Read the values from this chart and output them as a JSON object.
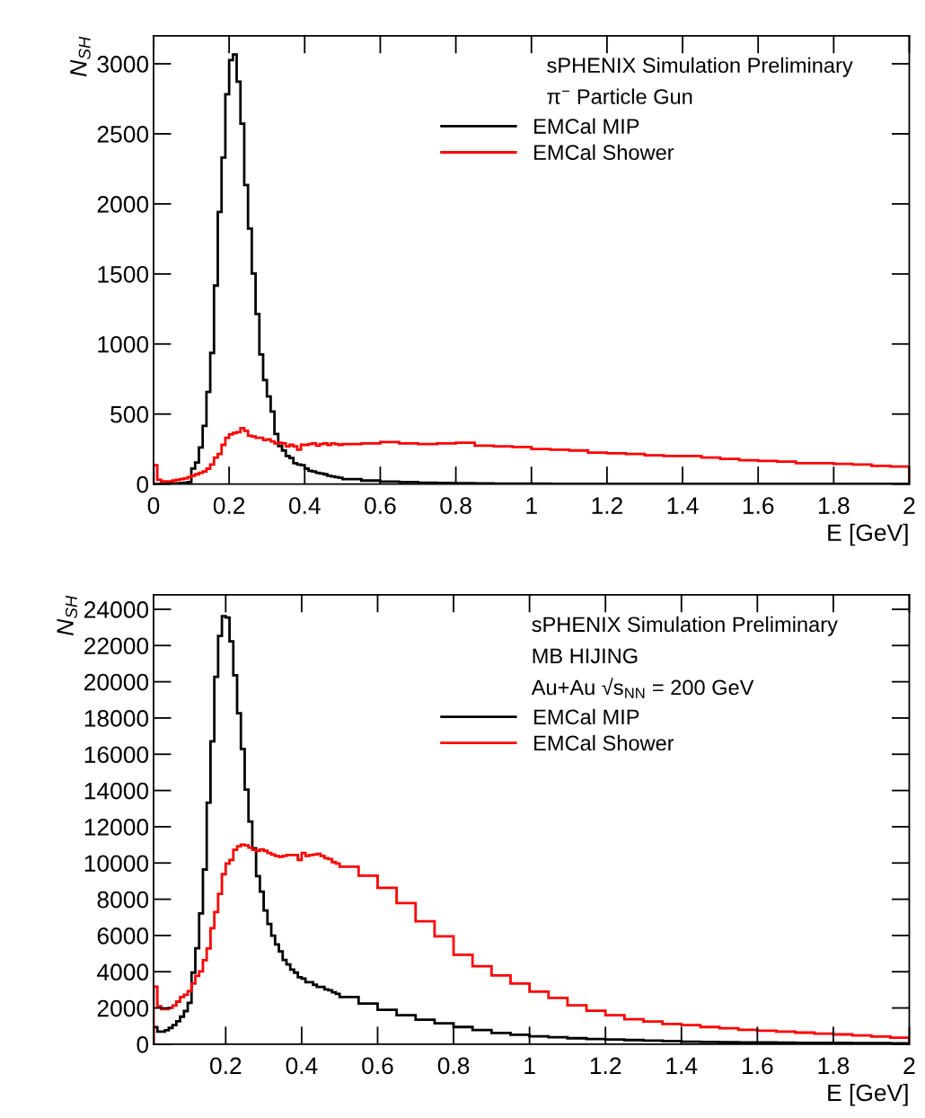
{
  "chart_data": [
    {
      "type": "histogram",
      "ylabel": "N$_{SH}$",
      "xlabel": "E [GeV]",
      "annotations": [
        "sPHENIX Simulation Preliminary",
        "π$^{−}$ Particle Gun"
      ],
      "bins": [
        0,
        0.01,
        0.02,
        0.03,
        0.04,
        0.05,
        0.06,
        0.07,
        0.08,
        0.09,
        0.1,
        0.11,
        0.12,
        0.13,
        0.14,
        0.15,
        0.16,
        0.17,
        0.18,
        0.19,
        0.2,
        0.21,
        0.22,
        0.23,
        0.24,
        0.25,
        0.26,
        0.27,
        0.28,
        0.29,
        0.3,
        0.31,
        0.32,
        0.33,
        0.34,
        0.35,
        0.36,
        0.37,
        0.38,
        0.39,
        0.4,
        0.41,
        0.42,
        0.43,
        0.44,
        0.45,
        0.46,
        0.47,
        0.48,
        0.49,
        0.5,
        0.55,
        0.6,
        0.65,
        0.7,
        0.75,
        0.8,
        0.85,
        0.9,
        0.95,
        1.0,
        1.05,
        1.1,
        1.15,
        1.2,
        1.25,
        1.3,
        1.35,
        1.4,
        1.45,
        1.5,
        1.55,
        1.6,
        1.65,
        1.7,
        1.75,
        1.8,
        1.85,
        1.9,
        1.95,
        2.0
      ],
      "series": [
        {
          "name": "EMCal MIP",
          "color": "#000000",
          "values": [
            0,
            0,
            0,
            0,
            2,
            3,
            5,
            8,
            10,
            15,
            111,
            154,
            261,
            415,
            657,
            936,
            1417,
            1942,
            2331,
            2783,
            3027,
            3066,
            2873,
            2573,
            2134,
            1824,
            1503,
            1214,
            925,
            743,
            625,
            518,
            358,
            272,
            240,
            200,
            186,
            150,
            140,
            135,
            110,
            95,
            90,
            80,
            75,
            70,
            60,
            55,
            50,
            45,
            35,
            25,
            18,
            14,
            10,
            8,
            6,
            5,
            4,
            3,
            3,
            2,
            2,
            2,
            2,
            2,
            1,
            1,
            1,
            1,
            1,
            1,
            1,
            1,
            1,
            1,
            1,
            1,
            1,
            1
          ]
        },
        {
          "name": "EMCal Shower",
          "color": "#ff0000",
          "values": [
            135,
            30,
            20,
            20,
            20,
            25,
            30,
            35,
            40,
            50,
            60,
            70,
            80,
            90,
            110,
            140,
            190,
            215,
            280,
            330,
            355,
            365,
            370,
            400,
            380,
            345,
            340,
            330,
            330,
            315,
            320,
            305,
            290,
            295,
            290,
            270,
            280,
            270,
            245,
            280,
            280,
            285,
            290,
            275,
            285,
            290,
            280,
            290,
            285,
            280,
            285,
            290,
            300,
            290,
            285,
            290,
            295,
            275,
            270,
            265,
            250,
            245,
            240,
            225,
            220,
            215,
            205,
            200,
            200,
            190,
            180,
            170,
            165,
            160,
            150,
            150,
            145,
            140,
            130,
            125
          ]
        }
      ],
      "xlim": [
        0,
        2
      ],
      "xticks": [
        0,
        0.2,
        0.4,
        0.6,
        0.8,
        1,
        1.2,
        1.4,
        1.6,
        1.8,
        2
      ],
      "ylim": [
        0,
        3200
      ],
      "yticks": [
        0,
        500,
        1000,
        1500,
        2000,
        2500,
        3000
      ],
      "legend": "top right",
      "grid": false
    },
    {
      "type": "histogram",
      "ylabel": "N$_{SH}$",
      "xlabel": "E [GeV]",
      "annotations": [
        "sPHENIX Simulation Preliminary",
        "MB HIJING",
        "Au+Au √s$_{NN}$ = 200 GeV"
      ],
      "bins": [
        0.01,
        0.02,
        0.03,
        0.04,
        0.05,
        0.06,
        0.07,
        0.08,
        0.09,
        0.1,
        0.11,
        0.12,
        0.13,
        0.14,
        0.15,
        0.16,
        0.17,
        0.18,
        0.19,
        0.2,
        0.21,
        0.22,
        0.23,
        0.24,
        0.25,
        0.26,
        0.27,
        0.28,
        0.29,
        0.3,
        0.31,
        0.32,
        0.33,
        0.34,
        0.35,
        0.36,
        0.37,
        0.38,
        0.39,
        0.4,
        0.41,
        0.42,
        0.43,
        0.44,
        0.45,
        0.46,
        0.47,
        0.48,
        0.49,
        0.5,
        0.55,
        0.6,
        0.65,
        0.7,
        0.75,
        0.8,
        0.85,
        0.9,
        0.95,
        1.0,
        1.05,
        1.1,
        1.15,
        1.2,
        1.25,
        1.3,
        1.35,
        1.4,
        1.45,
        1.5,
        1.55,
        1.6,
        1.65,
        1.7,
        1.75,
        1.8,
        1.85,
        1.9,
        1.95,
        2.0
      ],
      "series": [
        {
          "name": "EMCal MIP",
          "color": "#000000",
          "values": [
            940,
            690,
            690,
            770,
            900,
            1050,
            1270,
            1520,
            1830,
            2280,
            3950,
            5290,
            7220,
            9640,
            13330,
            16710,
            20270,
            22530,
            23620,
            23540,
            22230,
            20360,
            18260,
            16290,
            14050,
            12290,
            10810,
            9270,
            8420,
            7380,
            6630,
            5990,
            5510,
            5120,
            4650,
            4400,
            4120,
            3950,
            3700,
            3620,
            3420,
            3420,
            3280,
            3160,
            3160,
            3030,
            2980,
            2860,
            2780,
            2600,
            2250,
            1900,
            1600,
            1350,
            1150,
            950,
            780,
            620,
            520,
            440,
            380,
            330,
            290,
            260,
            230,
            200,
            170,
            140,
            120,
            110,
            100,
            100,
            90,
            80,
            70,
            70,
            60,
            60,
            50
          ]
        },
        {
          "name": "EMCal Shower",
          "color": "#ff0000",
          "values": [
            3180,
            2090,
            1930,
            1930,
            2010,
            2130,
            2350,
            2600,
            2730,
            2930,
            3350,
            3770,
            4020,
            4640,
            5280,
            6400,
            7290,
            8290,
            9380,
            9970,
            10170,
            10720,
            10920,
            11010,
            10970,
            10850,
            10720,
            10670,
            10750,
            10670,
            10550,
            10470,
            10390,
            10340,
            10390,
            10440,
            10440,
            10440,
            10170,
            10550,
            10390,
            10440,
            10470,
            10500,
            10390,
            10270,
            10220,
            10050,
            9970,
            9800,
            9300,
            8630,
            7790,
            6780,
            5950,
            4940,
            4300,
            3800,
            3350,
            2900,
            2550,
            2150,
            1850,
            1600,
            1380,
            1250,
            1120,
            1050,
            950,
            880,
            800,
            740,
            700,
            640,
            580,
            540,
            480,
            420,
            360
          ]
        }
      ],
      "xlim": [
        0.01,
        2
      ],
      "xticks": [
        0.2,
        0.4,
        0.6,
        0.8,
        1,
        1.2,
        1.4,
        1.6,
        1.8,
        2
      ],
      "ylim": [
        0,
        24800
      ],
      "yticks": [
        0,
        2000,
        4000,
        6000,
        8000,
        10000,
        12000,
        14000,
        16000,
        18000,
        20000,
        22000,
        24000
      ],
      "legend": "top right",
      "grid": false
    }
  ]
}
